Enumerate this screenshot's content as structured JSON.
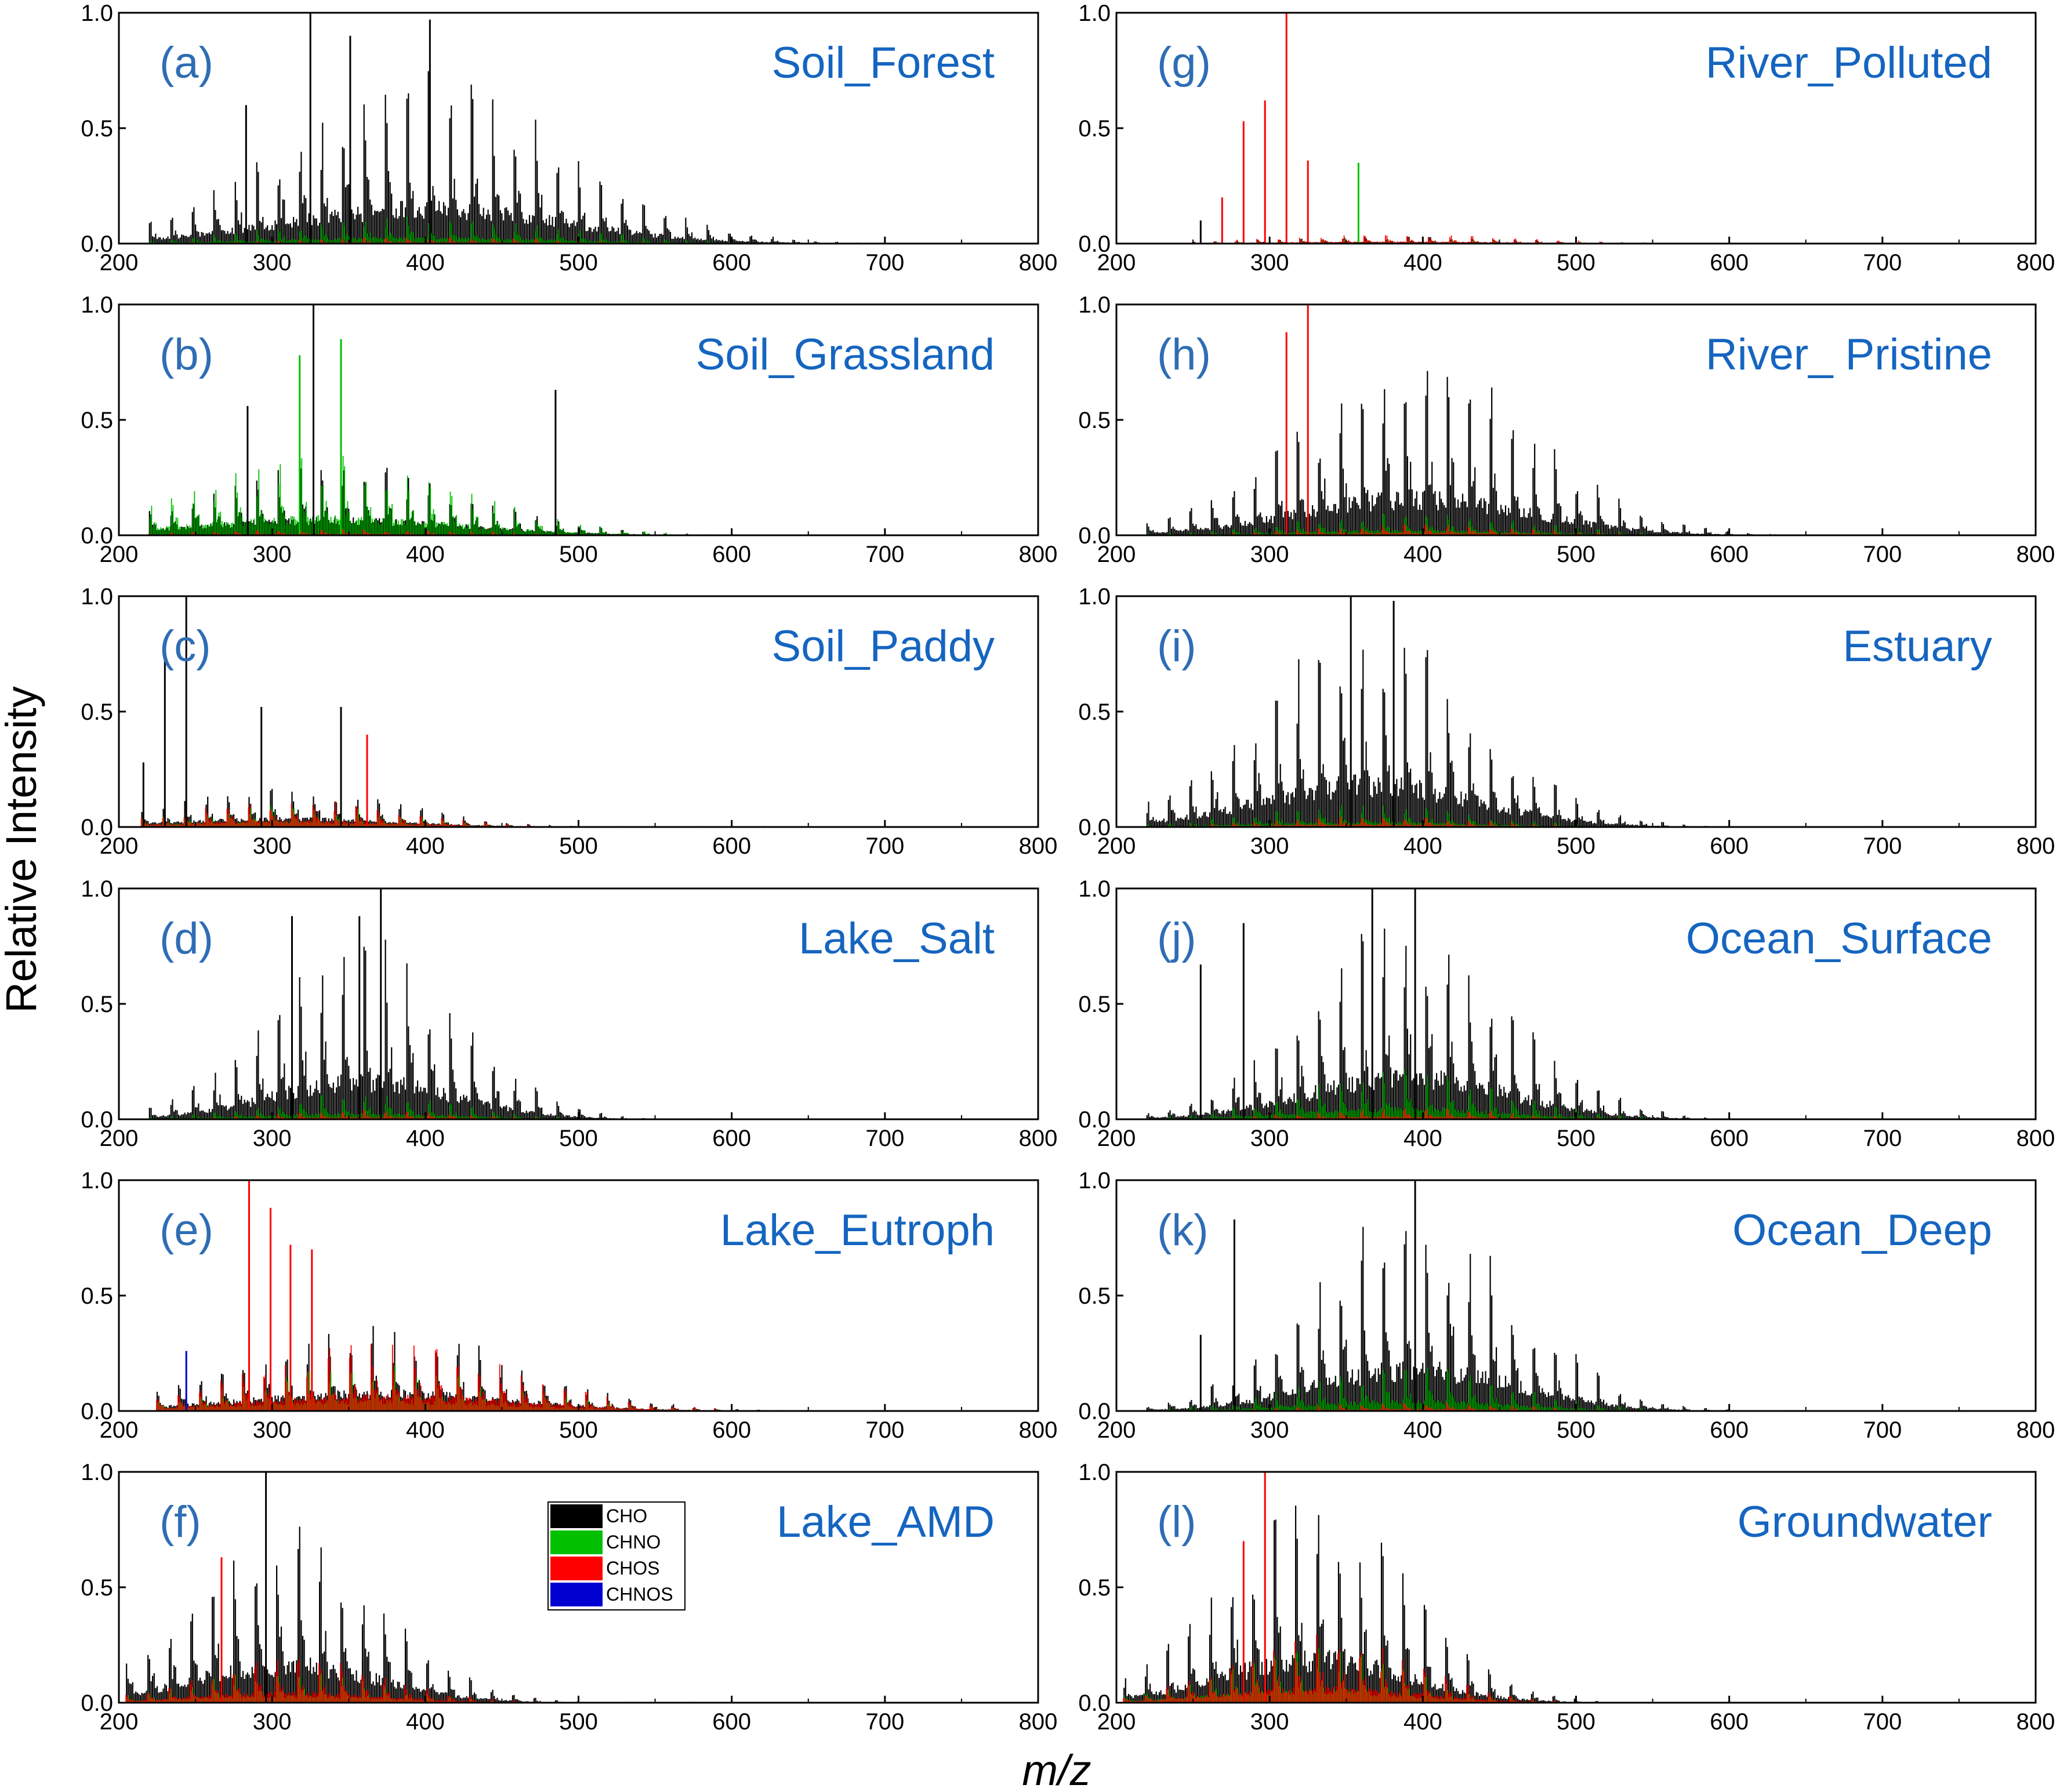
{
  "figure": {
    "ylabel": "Relative Intensity",
    "xlabel": "m/z"
  },
  "legend": [
    {
      "label": "CHO",
      "color": "#000000"
    },
    {
      "label": "CHNO",
      "color": "#00c000"
    },
    {
      "label": "CHOS",
      "color": "#ff0000"
    },
    {
      "label": "CHNOS",
      "color": "#0000d0"
    }
  ],
  "chart_data": [
    {
      "type": "bar",
      "tag": "(a)",
      "title": "Soil_Forest",
      "xlim": [
        200,
        800
      ],
      "ylim": [
        0,
        1.0
      ],
      "xticks": [
        "200",
        "300",
        "400",
        "500",
        "600",
        "700",
        "800"
      ],
      "yticks": [
        "0.0",
        "0.5",
        "1.0"
      ],
      "profile": {
        "center": 400,
        "width": 90,
        "start": 220,
        "end": 700
      },
      "series": [
        {
          "name": "CHO",
          "peak": 0.75
        },
        {
          "name": "CHNO",
          "peak": 0.12
        },
        {
          "name": "CHOS",
          "peak": 0.03
        },
        {
          "name": "CHNOS",
          "peak": 0.02
        }
      ],
      "peaks": [
        {
          "series": "CHO",
          "x": 325,
          "y": 1.0
        },
        {
          "series": "CHO",
          "x": 351,
          "y": 0.9
        },
        {
          "series": "CHO",
          "x": 403,
          "y": 0.97
        },
        {
          "series": "CHO",
          "x": 283,
          "y": 0.6
        }
      ]
    },
    {
      "type": "bar",
      "tag": "(b)",
      "title": "Soil_Grassland",
      "xlim": [
        200,
        800
      ],
      "ylim": [
        0,
        1.0
      ],
      "xticks": [
        "200",
        "300",
        "400",
        "500",
        "600",
        "700",
        "800"
      ],
      "yticks": [
        "0.0",
        "0.5",
        "1.0"
      ],
      "profile": {
        "center": 340,
        "width": 85,
        "start": 220,
        "end": 700
      },
      "series": [
        {
          "name": "CHO",
          "peak": 0.32
        },
        {
          "name": "CHNO",
          "peak": 0.35
        },
        {
          "name": "CHOS",
          "peak": 0.03
        },
        {
          "name": "CHNOS",
          "peak": 0.02
        }
      ],
      "peaks": [
        {
          "series": "CHO",
          "x": 327,
          "y": 1.0
        },
        {
          "series": "CHNO",
          "x": 345,
          "y": 0.85
        },
        {
          "series": "CHNO",
          "x": 318,
          "y": 0.78
        },
        {
          "series": "CHO",
          "x": 485,
          "y": 0.63
        },
        {
          "series": "CHO",
          "x": 284,
          "y": 0.56
        }
      ]
    },
    {
      "type": "bar",
      "tag": "(c)",
      "title": "Soil_Paddy",
      "xlim": [
        200,
        800
      ],
      "ylim": [
        0,
        1.0
      ],
      "xticks": [
        "200",
        "300",
        "400",
        "500",
        "600",
        "700",
        "800"
      ],
      "yticks": [
        "0.0",
        "0.5",
        "1.0"
      ],
      "profile": {
        "center": 310,
        "width": 70,
        "start": 215,
        "end": 700
      },
      "series": [
        {
          "name": "CHO",
          "peak": 0.18
        },
        {
          "name": "CHNO",
          "peak": 0.1
        },
        {
          "name": "CHOS",
          "peak": 0.12
        },
        {
          "name": "CHNOS",
          "peak": 0.02
        }
      ],
      "peaks": [
        {
          "series": "CHO",
          "x": 244,
          "y": 1.0
        },
        {
          "series": "CHO",
          "x": 230,
          "y": 0.79
        },
        {
          "series": "CHO",
          "x": 293,
          "y": 0.52
        },
        {
          "series": "CHO",
          "x": 345,
          "y": 0.52
        },
        {
          "series": "CHOS",
          "x": 362,
          "y": 0.4
        },
        {
          "series": "CHO",
          "x": 216,
          "y": 0.28
        }
      ]
    },
    {
      "type": "bar",
      "tag": "(d)",
      "title": "Lake_Salt",
      "xlim": [
        200,
        800
      ],
      "ylim": [
        0,
        1.0
      ],
      "xticks": [
        "200",
        "300",
        "400",
        "500",
        "600",
        "700",
        "800"
      ],
      "yticks": [
        "0.0",
        "0.5",
        "1.0"
      ],
      "profile": {
        "center": 360,
        "width": 60,
        "start": 220,
        "end": 700
      },
      "series": [
        {
          "name": "CHO",
          "peak": 0.82
        },
        {
          "name": "CHNO",
          "peak": 0.12
        },
        {
          "name": "CHOS",
          "peak": 0.04
        },
        {
          "name": "CHNOS",
          "peak": 0.02
        }
      ],
      "peaks": [
        {
          "series": "CHO",
          "x": 371,
          "y": 1.0
        },
        {
          "series": "CHO",
          "x": 313,
          "y": 0.88
        },
        {
          "series": "CHO",
          "x": 357,
          "y": 0.88
        }
      ]
    },
    {
      "type": "bar",
      "tag": "(e)",
      "title": "Lake_Eutroph",
      "xlim": [
        200,
        800
      ],
      "ylim": [
        0,
        1.0
      ],
      "xticks": [
        "200",
        "300",
        "400",
        "500",
        "600",
        "700",
        "800"
      ],
      "yticks": [
        "0.0",
        "0.5",
        "1.0"
      ],
      "profile": {
        "center": 370,
        "width": 85,
        "start": 225,
        "end": 700
      },
      "series": [
        {
          "name": "CHO",
          "peak": 0.38
        },
        {
          "name": "CHNO",
          "peak": 0.2
        },
        {
          "name": "CHOS",
          "peak": 0.3
        },
        {
          "name": "CHNOS",
          "peak": 0.03
        }
      ],
      "peaks": [
        {
          "series": "CHOS",
          "x": 285,
          "y": 1.0
        },
        {
          "series": "CHOS",
          "x": 299,
          "y": 0.88
        },
        {
          "series": "CHOS",
          "x": 312,
          "y": 0.72
        },
        {
          "series": "CHOS",
          "x": 326,
          "y": 0.7
        },
        {
          "series": "CHNOS",
          "x": 244,
          "y": 0.26
        }
      ]
    },
    {
      "type": "bar",
      "tag": "(f)",
      "title": "Lake_AMD",
      "xlim": [
        200,
        800
      ],
      "ylim": [
        0,
        1.0
      ],
      "xticks": [
        "200",
        "300",
        "400",
        "500",
        "600",
        "700",
        "800"
      ],
      "yticks": [
        "0.0",
        "0.5",
        "1.0"
      ],
      "profile": {
        "center": 310,
        "width": 60,
        "start": 205,
        "end": 600
      },
      "series": [
        {
          "name": "CHO",
          "peak": 0.82
        },
        {
          "name": "CHNO",
          "peak": 0.14
        },
        {
          "name": "CHOS",
          "peak": 0.2
        },
        {
          "name": "CHNOS",
          "peak": 0.02
        }
      ],
      "peaks": [
        {
          "series": "CHO",
          "x": 296,
          "y": 1.0
        },
        {
          "series": "CHOS",
          "x": 267,
          "y": 0.63
        }
      ]
    },
    {
      "type": "bar",
      "tag": "(g)",
      "title": "River_Polluted",
      "xlim": [
        200,
        800
      ],
      "ylim": [
        0,
        1.0
      ],
      "xticks": [
        "200",
        "300",
        "400",
        "500",
        "600",
        "700",
        "800"
      ],
      "yticks": [
        "0.0",
        "0.5",
        "1.0"
      ],
      "profile": {
        "center": 380,
        "width": 80,
        "start": 250,
        "end": 700
      },
      "series": [
        {
          "name": "CHO",
          "peak": 0.03
        },
        {
          "name": "CHNO",
          "peak": 0.02
        },
        {
          "name": "CHOS",
          "peak": 0.04
        },
        {
          "name": "CHNOS",
          "peak": 0.0
        }
      ],
      "peaks": [
        {
          "series": "CHOS",
          "x": 311,
          "y": 1.0
        },
        {
          "series": "CHOS",
          "x": 297,
          "y": 0.62
        },
        {
          "series": "CHOS",
          "x": 283,
          "y": 0.53
        },
        {
          "series": "CHNO",
          "x": 358,
          "y": 0.35
        },
        {
          "series": "CHOS",
          "x": 325,
          "y": 0.36
        },
        {
          "series": "CHOS",
          "x": 269,
          "y": 0.2
        },
        {
          "series": "CHO",
          "x": 255,
          "y": 0.1
        }
      ]
    },
    {
      "type": "bar",
      "tag": "(h)",
      "title": "River_ Pristine",
      "xlim": [
        200,
        800
      ],
      "ylim": [
        0,
        1.0
      ],
      "xticks": [
        "200",
        "300",
        "400",
        "500",
        "600",
        "700",
        "800"
      ],
      "yticks": [
        "0.0",
        "0.5",
        "1.0"
      ],
      "profile": {
        "center": 395,
        "width": 75,
        "start": 220,
        "end": 700
      },
      "series": [
        {
          "name": "CHO",
          "peak": 0.8
        },
        {
          "name": "CHNO",
          "peak": 0.1
        },
        {
          "name": "CHOS",
          "peak": 0.05
        },
        {
          "name": "CHNOS",
          "peak": 0.02
        }
      ],
      "peaks": [
        {
          "series": "CHOS",
          "x": 325,
          "y": 1.0
        },
        {
          "series": "CHOS",
          "x": 311,
          "y": 0.88
        }
      ]
    },
    {
      "type": "bar",
      "tag": "(i)",
      "title": "Estuary",
      "xlim": [
        200,
        800
      ],
      "ylim": [
        0,
        1.0
      ],
      "xticks": [
        "200",
        "300",
        "400",
        "500",
        "600",
        "700",
        "800"
      ],
      "yticks": [
        "0.0",
        "0.5",
        "1.0"
      ],
      "profile": {
        "center": 365,
        "width": 70,
        "start": 220,
        "end": 700
      },
      "series": [
        {
          "name": "CHO",
          "peak": 0.92
        },
        {
          "name": "CHNO",
          "peak": 0.1
        },
        {
          "name": "CHOS",
          "peak": 0.05
        },
        {
          "name": "CHNOS",
          "peak": 0.02
        }
      ],
      "peaks": [
        {
          "series": "CHO",
          "x": 353,
          "y": 1.0
        },
        {
          "series": "CHO",
          "x": 381,
          "y": 0.98
        }
      ]
    },
    {
      "type": "bar",
      "tag": "(j)",
      "title": "Ocean_Surface",
      "xlim": [
        200,
        800
      ],
      "ylim": [
        0,
        1.0
      ],
      "xticks": [
        "200",
        "300",
        "400",
        "500",
        "600",
        "700",
        "800"
      ],
      "yticks": [
        "0.0",
        "0.5",
        "1.0"
      ],
      "profile": {
        "center": 390,
        "width": 65,
        "start": 220,
        "end": 700
      },
      "series": [
        {
          "name": "CHO",
          "peak": 0.93
        },
        {
          "name": "CHNO",
          "peak": 0.22
        },
        {
          "name": "CHOS",
          "peak": 0.05
        },
        {
          "name": "CHNOS",
          "peak": 0.02
        }
      ],
      "peaks": [
        {
          "series": "CHO",
          "x": 367,
          "y": 1.0
        },
        {
          "series": "CHO",
          "x": 395,
          "y": 1.0
        },
        {
          "series": "CHO",
          "x": 255,
          "y": 0.67
        },
        {
          "series": "CHO",
          "x": 283,
          "y": 0.85
        }
      ]
    },
    {
      "type": "bar",
      "tag": "(k)",
      "title": "Ocean_Deep",
      "xlim": [
        200,
        800
      ],
      "ylim": [
        0,
        1.0
      ],
      "xticks": [
        "200",
        "300",
        "400",
        "500",
        "600",
        "700",
        "800"
      ],
      "yticks": [
        "0.0",
        "0.5",
        "1.0"
      ],
      "profile": {
        "center": 395,
        "width": 65,
        "start": 220,
        "end": 700
      },
      "series": [
        {
          "name": "CHO",
          "peak": 0.92
        },
        {
          "name": "CHNO",
          "peak": 0.2
        },
        {
          "name": "CHOS",
          "peak": 0.04
        },
        {
          "name": "CHNOS",
          "peak": 0.02
        }
      ],
      "peaks": [
        {
          "series": "CHO",
          "x": 395,
          "y": 1.0
        },
        {
          "series": "CHO",
          "x": 277,
          "y": 0.83
        },
        {
          "series": "CHO",
          "x": 255,
          "y": 0.33
        }
      ]
    },
    {
      "type": "bar",
      "tag": "(l)",
      "title": "Groundwater",
      "xlim": [
        200,
        800
      ],
      "ylim": [
        0,
        1.0
      ],
      "xticks": [
        "200",
        "300",
        "400",
        "500",
        "600",
        "700",
        "800"
      ],
      "yticks": [
        "0.0",
        "0.5",
        "1.0"
      ],
      "profile": {
        "center": 330,
        "width": 60,
        "start": 205,
        "end": 525
      },
      "series": [
        {
          "name": "CHO",
          "peak": 0.93
        },
        {
          "name": "CHNO",
          "peak": 0.25
        },
        {
          "name": "CHOS",
          "peak": 0.3
        },
        {
          "name": "CHNOS",
          "peak": 0.02
        }
      ],
      "peaks": [
        {
          "series": "CHOS",
          "x": 297,
          "y": 1.0
        },
        {
          "series": "CHOS",
          "x": 283,
          "y": 0.7
        }
      ]
    }
  ]
}
